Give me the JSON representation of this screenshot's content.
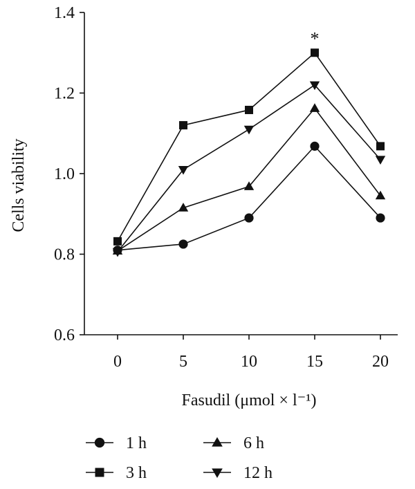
{
  "chart_data": {
    "type": "line",
    "title": "",
    "xlabel": "Fasudil (μmol × l⁻¹)",
    "ylabel": "Cells viability",
    "x": [
      0,
      5,
      10,
      15,
      20
    ],
    "xticks": [
      "0",
      "5",
      "10",
      "15",
      "20"
    ],
    "ylim": [
      0.6,
      1.4
    ],
    "yticks": [
      "0.6",
      "0.8",
      "1.0",
      "1.2",
      "1.4"
    ],
    "grid": false,
    "legend_position": "bottom",
    "annotation": {
      "text": "*",
      "x": 15,
      "series": "3 h"
    },
    "series": [
      {
        "name": "1 h",
        "marker": "circle",
        "values": [
          0.81,
          0.825,
          0.89,
          1.068,
          0.89
        ]
      },
      {
        "name": "3 h",
        "marker": "square",
        "values": [
          0.832,
          1.12,
          1.158,
          1.3,
          1.068
        ]
      },
      {
        "name": "6 h",
        "marker": "triangle-up",
        "values": [
          0.808,
          0.915,
          0.968,
          1.162,
          0.945
        ]
      },
      {
        "name": "12 h",
        "marker": "triangle-down",
        "values": [
          0.806,
          1.01,
          1.11,
          1.22,
          1.035
        ]
      }
    ]
  }
}
